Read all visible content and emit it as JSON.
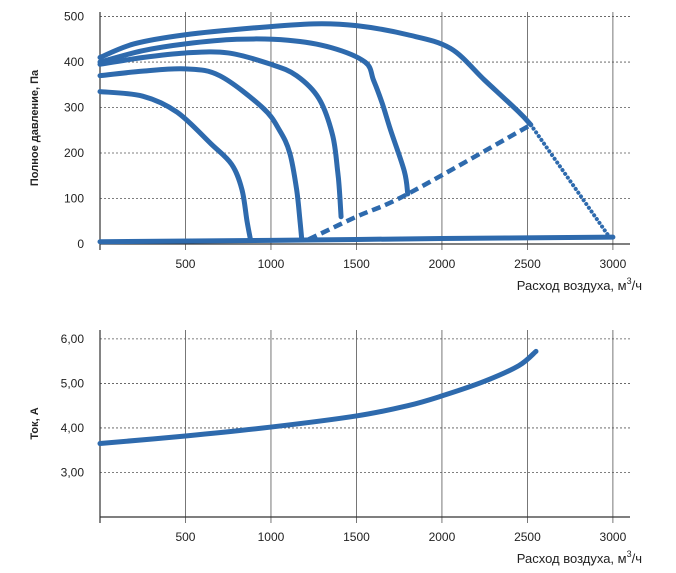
{
  "colors": {
    "series": "#2e6aad",
    "grid": "#555555",
    "axis": "#333333"
  },
  "chart_data": [
    {
      "type": "line",
      "title": "",
      "ylabel": "Полное давление, Па",
      "xlabel_text": "Расход воздуха, м",
      "xlabel_sup": "3",
      "xlabel_tail": "/ч",
      "xlim": [
        0,
        3100
      ],
      "ylim": [
        0,
        510
      ],
      "x_ticks": [
        500,
        1000,
        1500,
        2000,
        2500,
        3000
      ],
      "y_ticks": [
        0,
        100,
        200,
        300,
        400,
        500
      ],
      "grid": true,
      "series": [
        {
          "style": "solid",
          "points": [
            [
              0,
              410
            ],
            [
              200,
              440
            ],
            [
              500,
              460
            ],
            [
              900,
              475
            ],
            [
              1250,
              484
            ],
            [
              1500,
              480
            ],
            [
              1800,
              460
            ],
            [
              2050,
              430
            ],
            [
              2250,
              360
            ],
            [
              2450,
              290
            ],
            [
              2520,
              262
            ]
          ]
        },
        {
          "style": "solid",
          "points": [
            [
              0,
              400
            ],
            [
              250,
              425
            ],
            [
              500,
              440
            ],
            [
              800,
              450
            ],
            [
              1100,
              448
            ],
            [
              1350,
              432
            ],
            [
              1550,
              400
            ],
            [
              1600,
              360
            ],
            [
              1650,
              310
            ],
            [
              1700,
              250
            ],
            [
              1780,
              160
            ],
            [
              1800,
              110
            ]
          ]
        },
        {
          "style": "solid",
          "points": [
            [
              0,
              395
            ],
            [
              250,
              410
            ],
            [
              500,
              420
            ],
            [
              750,
              420
            ],
            [
              1000,
              395
            ],
            [
              1150,
              370
            ],
            [
              1280,
              320
            ],
            [
              1360,
              240
            ],
            [
              1390,
              160
            ],
            [
              1400,
              120
            ],
            [
              1410,
              60
            ]
          ]
        },
        {
          "style": "solid",
          "points": [
            [
              0,
              370
            ],
            [
              250,
              380
            ],
            [
              500,
              385
            ],
            [
              700,
              370
            ],
            [
              950,
              300
            ],
            [
              1050,
              250
            ],
            [
              1110,
              200
            ],
            [
              1150,
              120
            ],
            [
              1170,
              50
            ],
            [
              1180,
              10
            ]
          ]
        },
        {
          "style": "solid",
          "points": [
            [
              0,
              335
            ],
            [
              250,
              325
            ],
            [
              450,
              290
            ],
            [
              650,
              220
            ],
            [
              770,
              175
            ],
            [
              830,
              120
            ],
            [
              860,
              50
            ],
            [
              880,
              10
            ]
          ]
        },
        {
          "style": "solid",
          "points": [
            [
              0,
              5
            ],
            [
              1000,
              8
            ],
            [
              2000,
              12
            ],
            [
              3000,
              15
            ]
          ]
        },
        {
          "style": "dashed",
          "points": [
            [
              1220,
              10
            ],
            [
              1500,
              60
            ],
            [
              1800,
              110
            ],
            [
              2520,
              262
            ]
          ]
        },
        {
          "style": "dotted",
          "points": [
            [
              2520,
              262
            ],
            [
              2980,
              15
            ]
          ]
        }
      ]
    },
    {
      "type": "line",
      "title": "",
      "ylabel": "Ток, А",
      "xlabel_text": "Расход воздуха, м",
      "xlabel_sup": "3",
      "xlabel_tail": "/ч",
      "xlim": [
        0,
        3100
      ],
      "ylim": [
        2.0,
        6.2
      ],
      "x_ticks": [
        500,
        1000,
        1500,
        2000,
        2500,
        3000
      ],
      "y_ticks": [
        3.0,
        4.0,
        5.0,
        6.0
      ],
      "y_tick_labels": [
        "3,00",
        "4,00",
        "5,00",
        "6,00"
      ],
      "grid": true,
      "series": [
        {
          "style": "solid",
          "points": [
            [
              0,
              3.65
            ],
            [
              500,
              3.82
            ],
            [
              1000,
              4.02
            ],
            [
              1500,
              4.27
            ],
            [
              1800,
              4.5
            ],
            [
              2000,
              4.72
            ],
            [
              2250,
              5.05
            ],
            [
              2450,
              5.4
            ],
            [
              2550,
              5.72
            ]
          ]
        }
      ]
    }
  ]
}
